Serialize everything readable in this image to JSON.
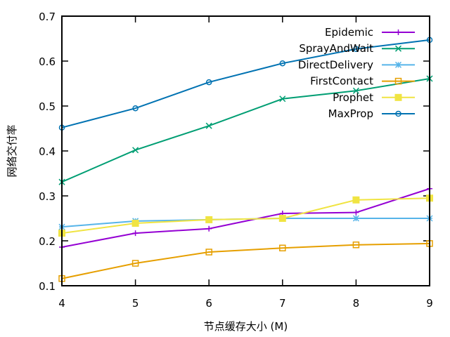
{
  "chart_data": {
    "type": "line",
    "title": "",
    "xlabel": "节点缓存大小 (M)",
    "ylabel": "网络交付率",
    "x": [
      4,
      5,
      6,
      7,
      8,
      9
    ],
    "xlim": [
      4,
      9
    ],
    "ylim": [
      0.1,
      0.7
    ],
    "xticks": [
      "4",
      "5",
      "6",
      "7",
      "8",
      "9"
    ],
    "yticks": [
      "0.1",
      "0.2",
      "0.3",
      "0.4",
      "0.5",
      "0.6",
      "0.7"
    ],
    "grid": false,
    "legend_position": "top-right",
    "series": [
      {
        "name": "Epidemic",
        "color": "#9400d3",
        "marker": "plus",
        "values": [
          0.186,
          0.217,
          0.227,
          0.261,
          0.263,
          0.316
        ]
      },
      {
        "name": "SprayAndWait",
        "color": "#009e73",
        "marker": "cross",
        "values": [
          0.331,
          0.402,
          0.456,
          0.516,
          0.534,
          0.561
        ]
      },
      {
        "name": "DirectDelivery",
        "color": "#56b4e9",
        "marker": "star",
        "values": [
          0.231,
          0.244,
          0.247,
          0.25,
          0.25,
          0.25
        ]
      },
      {
        "name": "FirstContact",
        "color": "#e69f00",
        "marker": "open-square",
        "values": [
          0.116,
          0.15,
          0.175,
          0.184,
          0.191,
          0.194
        ]
      },
      {
        "name": "Prophet",
        "color": "#f0e442",
        "marker": "filled-square",
        "values": [
          0.217,
          0.239,
          0.247,
          0.25,
          0.291,
          0.295
        ]
      },
      {
        "name": "MaxProp",
        "color": "#0072b2",
        "marker": "open-circle",
        "values": [
          0.452,
          0.495,
          0.553,
          0.595,
          0.627,
          0.647
        ]
      }
    ]
  }
}
